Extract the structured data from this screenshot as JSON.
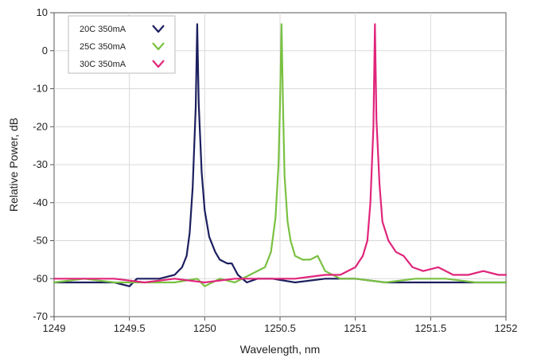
{
  "chart_data": {
    "type": "line",
    "title": "",
    "xlabel": "Wavelength, nm",
    "ylabel": "Relative Power, dB",
    "xlim": [
      1249,
      1252
    ],
    "ylim": [
      -70,
      10
    ],
    "xticks": [
      1249,
      1249.5,
      1250,
      1250.5,
      1251,
      1251.5,
      1252
    ],
    "xtick_labels": [
      "1249",
      "1249.5",
      "1250",
      "1250.5",
      "1251",
      "1251.5",
      "1252"
    ],
    "yticks": [
      10,
      0,
      -10,
      -20,
      -30,
      -40,
      -50,
      -60,
      -70
    ],
    "ytick_labels": [
      "10",
      "0",
      "-10",
      "-20",
      "-30",
      "-40",
      "-50",
      "-60",
      "-70"
    ],
    "grid": true,
    "legend_position": "top-left",
    "series": [
      {
        "name": "20C 350mA",
        "color": "#1c1f5e",
        "x": [
          1249.0,
          1249.2,
          1249.4,
          1249.5,
          1249.55,
          1249.7,
          1249.8,
          1249.85,
          1249.88,
          1249.9,
          1249.92,
          1249.94,
          1249.95,
          1249.96,
          1249.98,
          1250.0,
          1250.03,
          1250.07,
          1250.1,
          1250.15,
          1250.18,
          1250.22,
          1250.28,
          1250.35,
          1250.45,
          1250.6,
          1250.8,
          1251.0,
          1251.2,
          1251.4,
          1251.6,
          1251.8,
          1252.0
        ],
        "y": [
          -61,
          -61,
          -61,
          -62,
          -60,
          -60,
          -59,
          -57,
          -54,
          -48,
          -36,
          -15,
          7,
          -14,
          -32,
          -42,
          -49,
          -53,
          -55,
          -56,
          -56,
          -59,
          -61,
          -60,
          -60,
          -61,
          -60,
          -60,
          -61,
          -61,
          -61,
          -61,
          -61
        ]
      },
      {
        "name": "25C 350mA",
        "color": "#7ac142",
        "x": [
          1249.0,
          1249.2,
          1249.4,
          1249.6,
          1249.8,
          1249.95,
          1250.0,
          1250.1,
          1250.2,
          1250.3,
          1250.4,
          1250.44,
          1250.47,
          1250.49,
          1250.5,
          1250.51,
          1250.52,
          1250.53,
          1250.55,
          1250.57,
          1250.6,
          1250.65,
          1250.7,
          1250.75,
          1250.8,
          1250.9,
          1251.0,
          1251.2,
          1251.4,
          1251.6,
          1251.8,
          1252.0
        ],
        "y": [
          -61,
          -60,
          -61,
          -61,
          -61,
          -60,
          -62,
          -60,
          -61,
          -59,
          -57,
          -53,
          -44,
          -30,
          -14,
          7,
          -15,
          -33,
          -45,
          -50,
          -54,
          -55,
          -55,
          -54,
          -58,
          -60,
          -60,
          -61,
          -60,
          -60,
          -61,
          -61
        ]
      },
      {
        "name": "30C 350mA",
        "color": "#e0257b",
        "x": [
          1249.0,
          1249.2,
          1249.4,
          1249.6,
          1249.8,
          1250.0,
          1250.2,
          1250.4,
          1250.6,
          1250.8,
          1250.9,
          1251.0,
          1251.05,
          1251.08,
          1251.1,
          1251.12,
          1251.13,
          1251.14,
          1251.16,
          1251.18,
          1251.22,
          1251.27,
          1251.32,
          1251.38,
          1251.45,
          1251.55,
          1251.65,
          1251.75,
          1251.85,
          1251.95,
          1252.0
        ],
        "y": [
          -60,
          -60,
          -60,
          -61,
          -60,
          -61,
          -60,
          -60,
          -60,
          -59,
          -59,
          -57,
          -54,
          -50,
          -40,
          -20,
          7,
          -18,
          -35,
          -45,
          -50,
          -53,
          -54,
          -57,
          -58,
          -57,
          -59,
          -59,
          -58,
          -59,
          -59
        ]
      }
    ]
  }
}
